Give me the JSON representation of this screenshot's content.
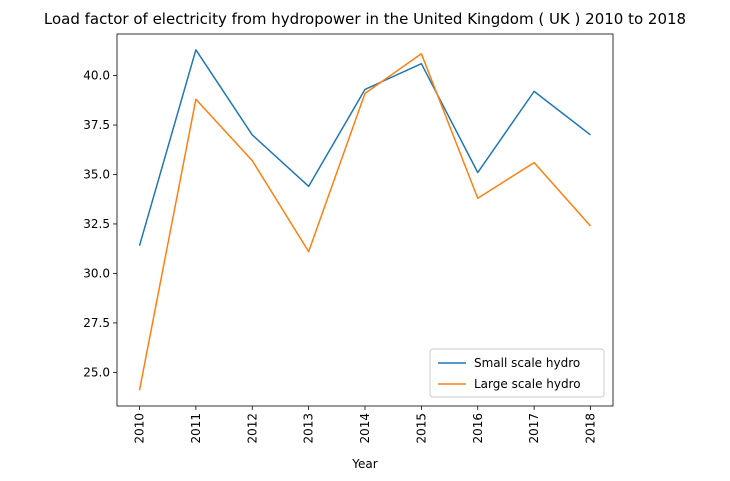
{
  "chart_data": {
    "type": "line",
    "title": "Load factor of electricity from hydropower in the United Kingdom ( UK ) 2010 to 2018",
    "xlabel": "Year",
    "ylabel": "",
    "x": [
      "2010",
      "2011",
      "2012",
      "2013",
      "2014",
      "2015",
      "2016",
      "2017",
      "2018"
    ],
    "yticks": [
      "25.0",
      "27.5",
      "30.0",
      "32.5",
      "35.0",
      "37.5",
      "40.0"
    ],
    "ylim": [
      23.3,
      42.1
    ],
    "grid": false,
    "legend_position": "lower-right",
    "series": [
      {
        "name": "Small scale hydro",
        "color": "#1f77b4",
        "values": [
          31.4,
          41.3,
          37.0,
          34.4,
          39.3,
          40.6,
          35.1,
          39.2,
          37.0
        ]
      },
      {
        "name": "Large scale hydro",
        "color": "#ff7f0e",
        "values": [
          24.1,
          38.8,
          35.7,
          31.1,
          39.1,
          41.1,
          33.8,
          35.6,
          32.4
        ]
      }
    ]
  }
}
